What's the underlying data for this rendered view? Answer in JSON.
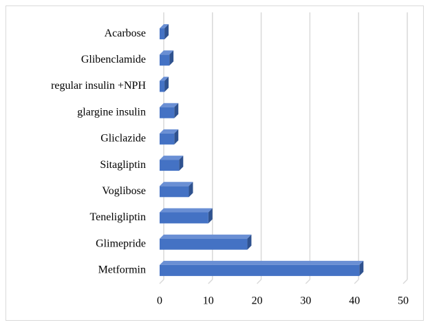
{
  "chart_data": {
    "type": "bar",
    "orientation": "horizontal",
    "categories": [
      "Acarbose",
      "Glibenclamide",
      "regular insulin +NPH",
      "glargine insulin",
      "Gliclazide",
      "Sitagliptin",
      "Voglibose",
      "Teneligliptin",
      "Glimepride",
      "Metformin"
    ],
    "values": [
      1,
      2,
      1,
      3,
      3,
      4,
      6,
      10,
      18,
      41
    ],
    "color": "#4472c4",
    "xlim": [
      0,
      50
    ],
    "xticks": [
      0,
      10,
      20,
      30,
      40,
      50
    ],
    "grid": true
  }
}
